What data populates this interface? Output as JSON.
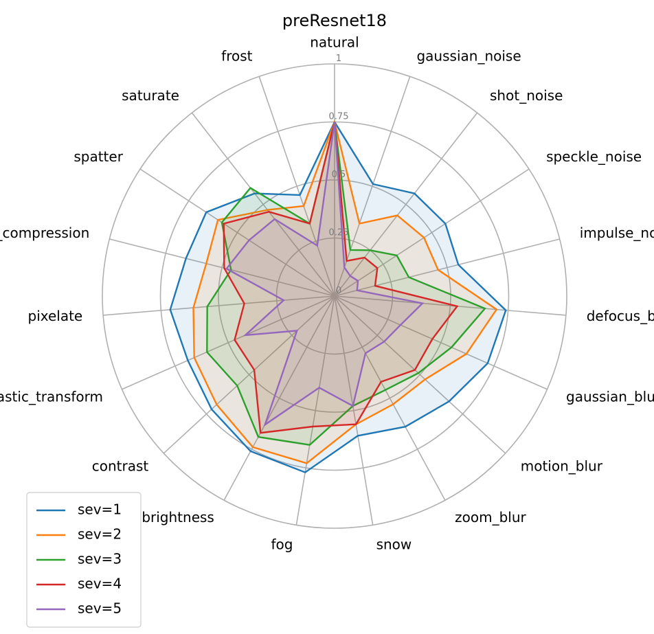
{
  "chart_data": {
    "type": "radar",
    "title": "preResnet18",
    "categories": [
      "natural",
      "gaussian_noise",
      "shot_noise",
      "speckle_noise",
      "impulse_noise",
      "defocus_blur",
      "gaussian_blur",
      "motion_blur",
      "zoom_blur",
      "snow",
      "fog",
      "brightness",
      "contrast",
      "elastic_transform",
      "pixelate",
      "jpeg_compression",
      "spatter",
      "saturate",
      "frost"
    ],
    "rlim": [
      0,
      1
    ],
    "rticks": [
      0,
      0.25,
      0.5,
      0.75,
      1
    ],
    "rtick_labels": [
      "0",
      "0.25",
      "0.5",
      "0.75",
      "1"
    ],
    "grid": true,
    "legend_placement": "lower-left",
    "series": [
      {
        "name": "sev=1",
        "color": "#1f77b4",
        "values": [
          0.75,
          0.51,
          0.56,
          0.57,
          0.55,
          0.74,
          0.72,
          0.67,
          0.64,
          0.61,
          0.77,
          0.76,
          0.72,
          0.69,
          0.71,
          0.66,
          0.66,
          0.56,
          0.46
        ]
      },
      {
        "name": "sev=2",
        "color": "#ff7f0e",
        "values": [
          0.75,
          0.33,
          0.44,
          0.46,
          0.46,
          0.7,
          0.62,
          0.53,
          0.53,
          0.56,
          0.73,
          0.74,
          0.69,
          0.66,
          0.61,
          0.57,
          0.6,
          0.47,
          0.41
        ]
      },
      {
        "name": "sev=3",
        "color": "#2ca02c",
        "values": [
          0.75,
          0.21,
          0.25,
          0.32,
          0.33,
          0.65,
          0.55,
          0.49,
          0.46,
          0.48,
          0.65,
          0.69,
          0.57,
          0.6,
          0.55,
          0.46,
          0.58,
          0.59,
          0.33
        ]
      },
      {
        "name": "sev=4",
        "color": "#d62728",
        "values": [
          0.75,
          0.16,
          0.21,
          0.22,
          0.18,
          0.53,
          0.46,
          0.47,
          0.42,
          0.56,
          0.57,
          0.67,
          0.47,
          0.47,
          0.39,
          0.49,
          0.57,
          0.46,
          0.33
        ]
      },
      {
        "name": "sev=5",
        "color": "#9467bd",
        "values": [
          0.75,
          0.13,
          0.11,
          0.12,
          0.1,
          0.38,
          0.31,
          0.29,
          0.28,
          0.48,
          0.4,
          0.63,
          0.22,
          0.42,
          0.22,
          0.48,
          0.44,
          0.42,
          0.23
        ]
      }
    ]
  }
}
